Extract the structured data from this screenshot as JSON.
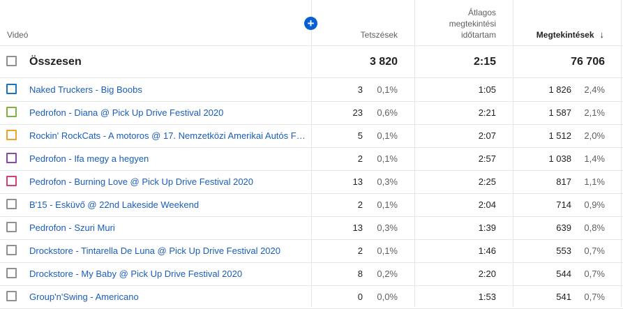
{
  "header": {
    "video_col": "Videó",
    "likes_col": "Tetszések",
    "avg_duration_col_line1": "Átlagos",
    "avg_duration_col_line2": "megtekintési",
    "avg_duration_col_line3": "időtartam",
    "views_col": "Megtekintések",
    "add_metric_icon": "plus-icon",
    "sort_icon": "arrow-down-icon"
  },
  "total": {
    "label": "Összesen",
    "likes": "3 820",
    "avg_duration": "2:15",
    "views": "76 706"
  },
  "rows": [
    {
      "title": "Naked Truckers - Big Boobs",
      "color": "#1a73b8",
      "likes": "3",
      "likes_pct": "0,1%",
      "avg_duration": "1:05",
      "views": "1 826",
      "views_pct": "2,4%"
    },
    {
      "title": "Pedrofon - Diana @ Pick Up Drive Festival 2020",
      "color": "#7cb342",
      "likes": "23",
      "likes_pct": "0,6%",
      "avg_duration": "2:21",
      "views": "1 587",
      "views_pct": "2,1%"
    },
    {
      "title": "Rockin' RockCats - A motoros @ 17. Nemzetközi Amerikai Autós Fe...",
      "color": "#f0a030",
      "likes": "5",
      "likes_pct": "0,1%",
      "avg_duration": "2:07",
      "views": "1 512",
      "views_pct": "2,0%"
    },
    {
      "title": "Pedrofon - Ifa megy a hegyen",
      "color": "#8e44ad",
      "likes": "2",
      "likes_pct": "0,1%",
      "avg_duration": "2:57",
      "views": "1 038",
      "views_pct": "1,4%"
    },
    {
      "title": "Pedrofon - Burning Love @ Pick Up Drive Festival 2020",
      "color": "#d6406a",
      "likes": "13",
      "likes_pct": "0,3%",
      "avg_duration": "2:25",
      "views": "817",
      "views_pct": "1,1%"
    },
    {
      "title": "B'15 - Esküvő @ 22nd Lakeside Weekend",
      "color": "#909090",
      "likes": "2",
      "likes_pct": "0,1%",
      "avg_duration": "2:04",
      "views": "714",
      "views_pct": "0,9%"
    },
    {
      "title": "Pedrofon - Szuri Muri",
      "color": "#909090",
      "likes": "13",
      "likes_pct": "0,3%",
      "avg_duration": "1:39",
      "views": "639",
      "views_pct": "0,8%"
    },
    {
      "title": "Drockstore - Tintarella De Luna @ Pick Up Drive Festival 2020",
      "color": "#909090",
      "likes": "2",
      "likes_pct": "0,1%",
      "avg_duration": "1:46",
      "views": "553",
      "views_pct": "0,7%"
    },
    {
      "title": "Drockstore - My Baby @ Pick Up Drive Festival 2020",
      "color": "#909090",
      "likes": "8",
      "likes_pct": "0,2%",
      "avg_duration": "2:20",
      "views": "544",
      "views_pct": "0,7%"
    },
    {
      "title": "Group'n'Swing - Americano",
      "color": "#909090",
      "likes": "0",
      "likes_pct": "0,0%",
      "avg_duration": "1:53",
      "views": "541",
      "views_pct": "0,7%"
    }
  ]
}
